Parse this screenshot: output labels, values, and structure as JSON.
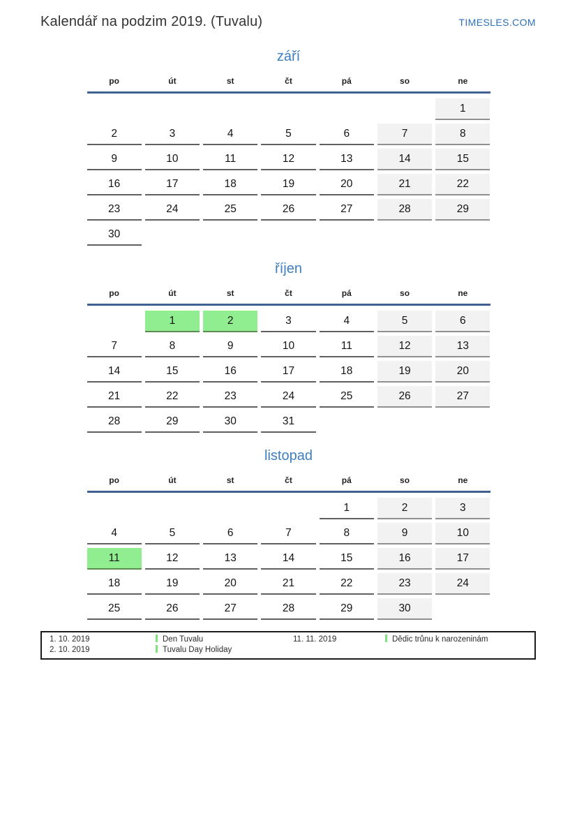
{
  "page": {
    "title": "Kalendář na podzim 2019. (Tuvalu)",
    "site": "TIMESLES.COM"
  },
  "colors": {
    "month_title": "#3d7fc1",
    "header_rule": "#3e6191",
    "weekend_bg": "#f2f2f2",
    "holiday_bg": "#90ee90",
    "holiday_border": "#5c8a50",
    "site_link": "#2e6fbd",
    "legend_marker": "#7de37d"
  },
  "weekday_headers": [
    "po",
    "út",
    "st",
    "čt",
    "pá",
    "so",
    "ne"
  ],
  "months": [
    {
      "name": "září",
      "holidays": [],
      "weeks": [
        [
          null,
          null,
          null,
          null,
          null,
          null,
          1
        ],
        [
          2,
          3,
          4,
          5,
          6,
          7,
          8
        ],
        [
          9,
          10,
          11,
          12,
          13,
          14,
          15
        ],
        [
          16,
          17,
          18,
          19,
          20,
          21,
          22
        ],
        [
          23,
          24,
          25,
          26,
          27,
          28,
          29
        ],
        [
          30,
          null,
          null,
          null,
          null,
          null,
          null
        ]
      ]
    },
    {
      "name": "říjen",
      "holidays": [
        1,
        2
      ],
      "weeks": [
        [
          null,
          1,
          2,
          3,
          4,
          5,
          6
        ],
        [
          7,
          8,
          9,
          10,
          11,
          12,
          13
        ],
        [
          14,
          15,
          16,
          17,
          18,
          19,
          20
        ],
        [
          21,
          22,
          23,
          24,
          25,
          26,
          27
        ],
        [
          28,
          29,
          30,
          31,
          null,
          null,
          null
        ]
      ]
    },
    {
      "name": "listopad",
      "holidays": [
        11
      ],
      "weeks": [
        [
          null,
          null,
          null,
          null,
          1,
          2,
          3
        ],
        [
          4,
          5,
          6,
          7,
          8,
          9,
          10
        ],
        [
          11,
          12,
          13,
          14,
          15,
          16,
          17
        ],
        [
          18,
          19,
          20,
          21,
          22,
          23,
          24
        ],
        [
          25,
          26,
          27,
          28,
          29,
          30,
          null
        ]
      ]
    }
  ],
  "legend": {
    "columns": [
      {
        "entries": [
          {
            "date": "1. 10. 2019",
            "label": "Den Tuvalu"
          },
          {
            "date": "2. 10. 2019",
            "label": "Tuvalu Day Holiday"
          }
        ]
      },
      {
        "entries": [
          {
            "date": "11. 11. 2019",
            "label": "Dědic trůnu k narozeninám"
          }
        ]
      }
    ]
  }
}
